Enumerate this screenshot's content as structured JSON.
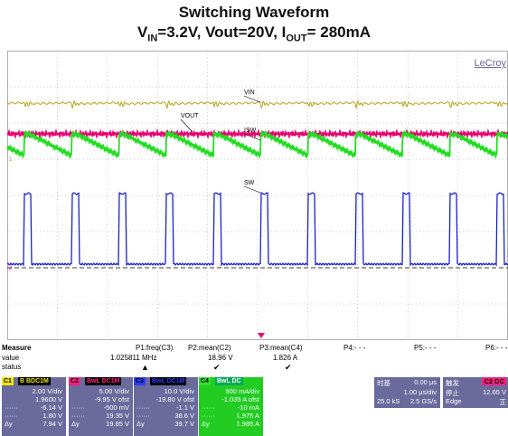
{
  "title": "Switching Waveform",
  "subtitle": {
    "v": "V",
    "v_sub": "IN",
    "part1": "=3.2V, Vout=20V, I",
    "i_sub": "OUT",
    "part2": "= 280mA"
  },
  "scope": {
    "brand": "LeCroy",
    "trace_labels": {
      "vin": "VIN",
      "vout": "VOUT",
      "isw": "ISW",
      "sw": "SW"
    },
    "colors": {
      "vin": "#b8a21a",
      "vout": "#e8006f",
      "isw": "#22dd22",
      "sw": "#1a22cc",
      "grid": "#9a9a9a",
      "trigger": "#e8006f"
    }
  },
  "measure": {
    "row_labels": [
      "Measure",
      "value",
      "status"
    ],
    "columns": [
      {
        "name": "P1:freq(C3)",
        "value": "1.025811 MHz",
        "status": "▲"
      },
      {
        "name": "P2:mean(C2)",
        "value": "18.96 V",
        "status": "✔"
      },
      {
        "name": "P3:mean(C4)",
        "value": "1.826 A",
        "status": "✔"
      },
      {
        "name": "P4:- - -",
        "value": "",
        "status": ""
      },
      {
        "name": "P5:- - -",
        "value": "",
        "status": ""
      },
      {
        "name": "P6:- - -",
        "value": "",
        "status": ""
      }
    ]
  },
  "channels": [
    {
      "id": "C1",
      "tag": "B BDC1M",
      "vdiv": "2.00 V/div",
      "ofst": "1.9600 V",
      "r1": "-6.14 V",
      "r2": "1.80 V",
      "r3": "7.94 V",
      "color": "#f2e600",
      "bg": "#6a6a9c"
    },
    {
      "id": "C2",
      "tag": "BwL DC1M",
      "vdiv": "5.00 V/div",
      "ofst": "-9.95 V ofst",
      "r1": "-500 mV",
      "r2": "19.35 V",
      "r3": "19.85 V",
      "color": "#ff2080",
      "bg": "#6a6a9c"
    },
    {
      "id": "C3",
      "tag": "BwL DC1M",
      "vdiv": "10.0 V/div",
      "ofst": "-19.80 V ofst",
      "r1": "-1.1 V",
      "r2": "38.6 V",
      "r3": "39.7 V",
      "color": "#2a3cff",
      "bg": "#6a6a9c"
    },
    {
      "id": "C4",
      "tag": "BwL DC",
      "vdiv": "500 mA/div",
      "ofst": "-1.035 A ofst",
      "r1": "-10 mA",
      "r2": "1.975 A",
      "r3": "1.985 A",
      "color": "#33dd33",
      "bg": "#22cc22"
    }
  ],
  "row_marks": {
    "dots": "······",
    "delta": "Δy"
  },
  "timebase": {
    "label": "时基",
    "delay": "0.00 μs",
    "tdiv": "1.00 μs/div",
    "samples": "25.0 kS",
    "rate": "2.5 GS/s"
  },
  "trigger": {
    "label": "触发",
    "ch": "C2 DC",
    "mode": "停止",
    "level": "12.65 V",
    "type": "Edge",
    "slope": "正"
  }
}
